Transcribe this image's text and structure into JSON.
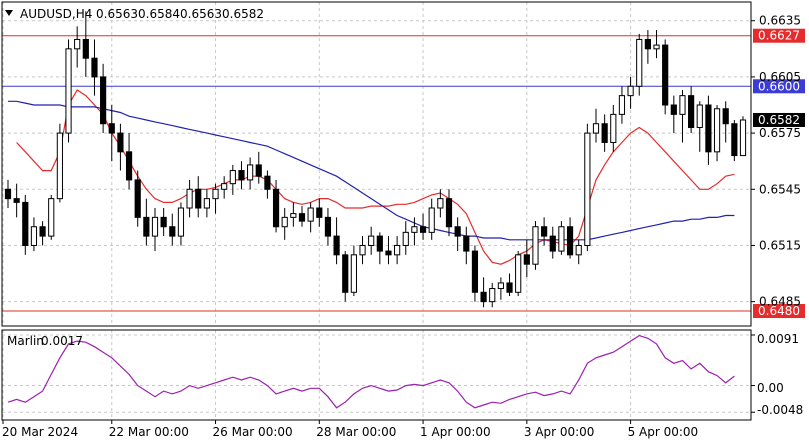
{
  "header": {
    "symbol": "AUDUSD,H4",
    "open": "0.6563",
    "high": "0.6584",
    "low": "0.6563",
    "close": "0.6582"
  },
  "indicator": {
    "name": "Marlin",
    "value": "0.0017",
    "ticks": [
      "0.0091",
      "0.00",
      "-0.0048"
    ]
  },
  "chart_data": {
    "type": "candlestick",
    "symbol": "AUDUSD",
    "timeframe": "H4",
    "ylim": [
      0.6472,
      0.6645
    ],
    "y_ticks": [
      "0.6635",
      "0.6605",
      "0.6575",
      "0.6545",
      "0.6515",
      "0.6485"
    ],
    "x_ticks": [
      "20 Mar 2024",
      "22 Mar 00:00",
      "26 Mar 00:00",
      "28 Mar 00:00",
      "1 Apr 00:00",
      "3 Apr 00:00",
      "5 Apr 00:00"
    ],
    "levels": [
      {
        "value": 0.6627,
        "label": "0.6627",
        "color": "#e52b2b"
      },
      {
        "value": 0.66,
        "label": "0.6600",
        "color": "#3b3bd6"
      },
      {
        "value": 0.648,
        "label": "0.6480",
        "color": "#e52b2b"
      }
    ],
    "current_price": {
      "value": 0.6582,
      "label": "0.6582"
    },
    "candles": [
      [
        0.6545,
        0.655,
        0.6535,
        0.654
      ],
      [
        0.654,
        0.6548,
        0.653,
        0.6538
      ],
      [
        0.6538,
        0.6542,
        0.651,
        0.6515
      ],
      [
        0.6515,
        0.653,
        0.6512,
        0.6525
      ],
      [
        0.6525,
        0.6528,
        0.6515,
        0.652
      ],
      [
        0.652,
        0.6542,
        0.6518,
        0.654
      ],
      [
        0.654,
        0.658,
        0.6538,
        0.6575
      ],
      [
        0.6575,
        0.6625,
        0.657,
        0.662
      ],
      [
        0.662,
        0.6632,
        0.661,
        0.6625
      ],
      [
        0.6625,
        0.664,
        0.6605,
        0.6615
      ],
      [
        0.6615,
        0.6625,
        0.6595,
        0.6605
      ],
      [
        0.6605,
        0.6612,
        0.6575,
        0.658
      ],
      [
        0.658,
        0.659,
        0.656,
        0.6575
      ],
      [
        0.6575,
        0.658,
        0.6555,
        0.6565
      ],
      [
        0.6565,
        0.6575,
        0.6545,
        0.655
      ],
      [
        0.655,
        0.6555,
        0.6525,
        0.653
      ],
      [
        0.653,
        0.654,
        0.6515,
        0.652
      ],
      [
        0.652,
        0.6535,
        0.6512,
        0.653
      ],
      [
        0.653,
        0.6535,
        0.652,
        0.6525
      ],
      [
        0.6525,
        0.6532,
        0.6515,
        0.652
      ],
      [
        0.652,
        0.6538,
        0.6515,
        0.6535
      ],
      [
        0.6535,
        0.655,
        0.653,
        0.6545
      ],
      [
        0.6545,
        0.6552,
        0.653,
        0.6535
      ],
      [
        0.6535,
        0.6545,
        0.653,
        0.654
      ],
      [
        0.654,
        0.6548,
        0.6532,
        0.6545
      ],
      [
        0.6545,
        0.6552,
        0.654,
        0.6548
      ],
      [
        0.6548,
        0.6558,
        0.6542,
        0.6555
      ],
      [
        0.6555,
        0.656,
        0.6545,
        0.655
      ],
      [
        0.655,
        0.6562,
        0.6545,
        0.6558
      ],
      [
        0.6558,
        0.6565,
        0.6548,
        0.6552
      ],
      [
        0.6552,
        0.6555,
        0.654,
        0.6545
      ],
      [
        0.6545,
        0.655,
        0.6522,
        0.6525
      ],
      [
        0.6525,
        0.6535,
        0.6518,
        0.653
      ],
      [
        0.653,
        0.6538,
        0.6525,
        0.6532
      ],
      [
        0.6532,
        0.6536,
        0.6525,
        0.6528
      ],
      [
        0.6528,
        0.6538,
        0.6522,
        0.6535
      ],
      [
        0.6535,
        0.654,
        0.6525,
        0.653
      ],
      [
        0.653,
        0.6535,
        0.6515,
        0.652
      ],
      [
        0.652,
        0.653,
        0.6505,
        0.651
      ],
      [
        0.651,
        0.6512,
        0.6485,
        0.649
      ],
      [
        0.649,
        0.6515,
        0.6488,
        0.651
      ],
      [
        0.651,
        0.652,
        0.6505,
        0.6515
      ],
      [
        0.6515,
        0.6525,
        0.651,
        0.652
      ],
      [
        0.652,
        0.6522,
        0.6505,
        0.6512
      ],
      [
        0.6512,
        0.652,
        0.6505,
        0.651
      ],
      [
        0.651,
        0.652,
        0.6505,
        0.6515
      ],
      [
        0.6515,
        0.6528,
        0.651,
        0.6522
      ],
      [
        0.6522,
        0.653,
        0.6515,
        0.6525
      ],
      [
        0.6525,
        0.6532,
        0.6518,
        0.6522
      ],
      [
        0.6522,
        0.654,
        0.6518,
        0.6535
      ],
      [
        0.6535,
        0.6545,
        0.653,
        0.654
      ],
      [
        0.654,
        0.6545,
        0.652,
        0.6525
      ],
      [
        0.6525,
        0.653,
        0.6512,
        0.652
      ],
      [
        0.652,
        0.6525,
        0.6505,
        0.6512
      ],
      [
        0.6512,
        0.6515,
        0.6485,
        0.649
      ],
      [
        0.649,
        0.6498,
        0.6482,
        0.6485
      ],
      [
        0.6485,
        0.6495,
        0.6482,
        0.6492
      ],
      [
        0.6492,
        0.6498,
        0.6486,
        0.6495
      ],
      [
        0.6495,
        0.65,
        0.6488,
        0.649
      ],
      [
        0.649,
        0.6512,
        0.6488,
        0.651
      ],
      [
        0.651,
        0.6518,
        0.6498,
        0.6505
      ],
      [
        0.6505,
        0.6528,
        0.6502,
        0.6525
      ],
      [
        0.6525,
        0.653,
        0.6515,
        0.652
      ],
      [
        0.652,
        0.6525,
        0.6508,
        0.6512
      ],
      [
        0.6512,
        0.6528,
        0.651,
        0.6525
      ],
      [
        0.6525,
        0.653,
        0.6508,
        0.651
      ],
      [
        0.651,
        0.6518,
        0.6505,
        0.6515
      ],
      [
        0.6515,
        0.658,
        0.6512,
        0.6575
      ],
      [
        0.6575,
        0.6588,
        0.657,
        0.658
      ],
      [
        0.658,
        0.6585,
        0.6565,
        0.657
      ],
      [
        0.657,
        0.659,
        0.6565,
        0.6585
      ],
      [
        0.6585,
        0.66,
        0.658,
        0.6595
      ],
      [
        0.6595,
        0.6605,
        0.6588,
        0.66
      ],
      [
        0.66,
        0.6628,
        0.6595,
        0.6625
      ],
      [
        0.6625,
        0.663,
        0.6612,
        0.662
      ],
      [
        0.662,
        0.663,
        0.6615,
        0.6622
      ],
      [
        0.6622,
        0.6625,
        0.6585,
        0.659
      ],
      [
        0.659,
        0.6595,
        0.6575,
        0.6585
      ],
      [
        0.6585,
        0.6598,
        0.657,
        0.6595
      ],
      [
        0.6595,
        0.66,
        0.6575,
        0.6578
      ],
      [
        0.6578,
        0.6592,
        0.6565,
        0.659
      ],
      [
        0.659,
        0.6595,
        0.6558,
        0.6565
      ],
      [
        0.6565,
        0.659,
        0.656,
        0.6588
      ],
      [
        0.6588,
        0.6592,
        0.657,
        0.658
      ],
      [
        0.658,
        0.6582,
        0.656,
        0.6563
      ],
      [
        0.6563,
        0.6584,
        0.6563,
        0.6582
      ]
    ],
    "series": [
      {
        "name": "",
        "color": "#e52b2b",
        "values": [
          null,
          0.657,
          0.6565,
          0.656,
          0.6555,
          0.6555,
          0.6565,
          0.659,
          0.6598,
          0.6595,
          0.659,
          0.6585,
          0.6575,
          0.6568,
          0.656,
          0.6552,
          0.6545,
          0.654,
          0.6538,
          0.6538,
          0.654,
          0.6543,
          0.6545,
          0.6545,
          0.6546,
          0.6548,
          0.655,
          0.655,
          0.6552,
          0.6552,
          0.655,
          0.6545,
          0.654,
          0.6538,
          0.6537,
          0.6538,
          0.654,
          0.654,
          0.6538,
          0.6535,
          0.6535,
          0.6535,
          0.6536,
          0.6536,
          0.6536,
          0.6537,
          0.6537,
          0.6538,
          0.654,
          0.6542,
          0.6543,
          0.654,
          0.6537,
          0.6532,
          0.6522,
          0.6512,
          0.6506,
          0.6505,
          0.6507,
          0.651,
          0.6512,
          0.6516,
          0.6518,
          0.6517,
          0.6516,
          0.6515,
          0.652,
          0.6535,
          0.655,
          0.6558,
          0.6565,
          0.657,
          0.6575,
          0.6578,
          0.6575,
          0.657,
          0.6565,
          0.656,
          0.6555,
          0.655,
          0.6545,
          0.6545,
          0.6548,
          0.6552,
          0.6553
        ]
      },
      {
        "name": "",
        "color": "#2020b0",
        "values": [
          0.6592,
          0.6592,
          0.6591,
          0.659,
          0.659,
          0.659,
          0.659,
          0.6589,
          0.6589,
          0.6589,
          0.6589,
          0.6588,
          0.6587,
          0.6586,
          0.6584,
          0.6583,
          0.6582,
          0.6581,
          0.658,
          0.6579,
          0.6578,
          0.6577,
          0.6576,
          0.6575,
          0.6574,
          0.6573,
          0.6572,
          0.6571,
          0.657,
          0.6569,
          0.6568,
          0.6566,
          0.6564,
          0.6562,
          0.656,
          0.6558,
          0.6556,
          0.6554,
          0.6552,
          0.6549,
          0.6546,
          0.6543,
          0.654,
          0.6537,
          0.6534,
          0.6531,
          0.6529,
          0.6527,
          0.6525,
          0.6524,
          0.6523,
          0.6522,
          0.6521,
          0.652,
          0.652,
          0.6519,
          0.6519,
          0.6519,
          0.6518,
          0.6518,
          0.6518,
          0.6518,
          0.6518,
          0.6518,
          0.6518,
          0.6518,
          0.6518,
          0.6518,
          0.6519,
          0.652,
          0.6521,
          0.6522,
          0.6523,
          0.6524,
          0.6525,
          0.6526,
          0.6527,
          0.6528,
          0.6528,
          0.6529,
          0.6529,
          0.653,
          0.653,
          0.6531,
          0.6531
        ]
      }
    ],
    "oscillator": {
      "name": "Marlin",
      "ylim": [
        -0.0062,
        0.01
      ],
      "values": [
        -0.003,
        -0.0025,
        -0.003,
        -0.002,
        -0.001,
        0.002,
        0.005,
        0.0075,
        0.008,
        0.0078,
        0.007,
        0.006,
        0.005,
        0.0035,
        0.002,
        0.0,
        -0.001,
        -0.002,
        -0.001,
        -0.0015,
        -0.001,
        0.0,
        -0.0005,
        0.0,
        0.0005,
        0.001,
        0.0015,
        0.001,
        0.0015,
        0.001,
        0.0,
        -0.0015,
        -0.001,
        -0.0005,
        -0.001,
        -0.0005,
        -0.0005,
        -0.002,
        -0.004,
        -0.003,
        -0.0015,
        -0.0005,
        0.0,
        -0.0005,
        -0.001,
        -0.0008,
        0.0,
        0.0002,
        0.0,
        0.0005,
        0.001,
        0.0005,
        -0.001,
        -0.003,
        -0.004,
        -0.0035,
        -0.003,
        -0.0032,
        -0.0025,
        -0.002,
        -0.0015,
        -0.0012,
        -0.0018,
        -0.0015,
        -0.001,
        -0.0015,
        0.001,
        0.004,
        0.005,
        0.0055,
        0.006,
        0.007,
        0.008,
        0.009,
        0.0085,
        0.0075,
        0.005,
        0.004,
        0.0045,
        0.003,
        0.004,
        0.0025,
        0.0018,
        0.0005,
        0.0017
      ]
    },
    "colors": {
      "bull": "#ffffff",
      "bear": "#000000",
      "oscillator": "#9b1fb0",
      "tag_red": "#e52b2b",
      "tag_blue": "#3b3bd6"
    }
  }
}
